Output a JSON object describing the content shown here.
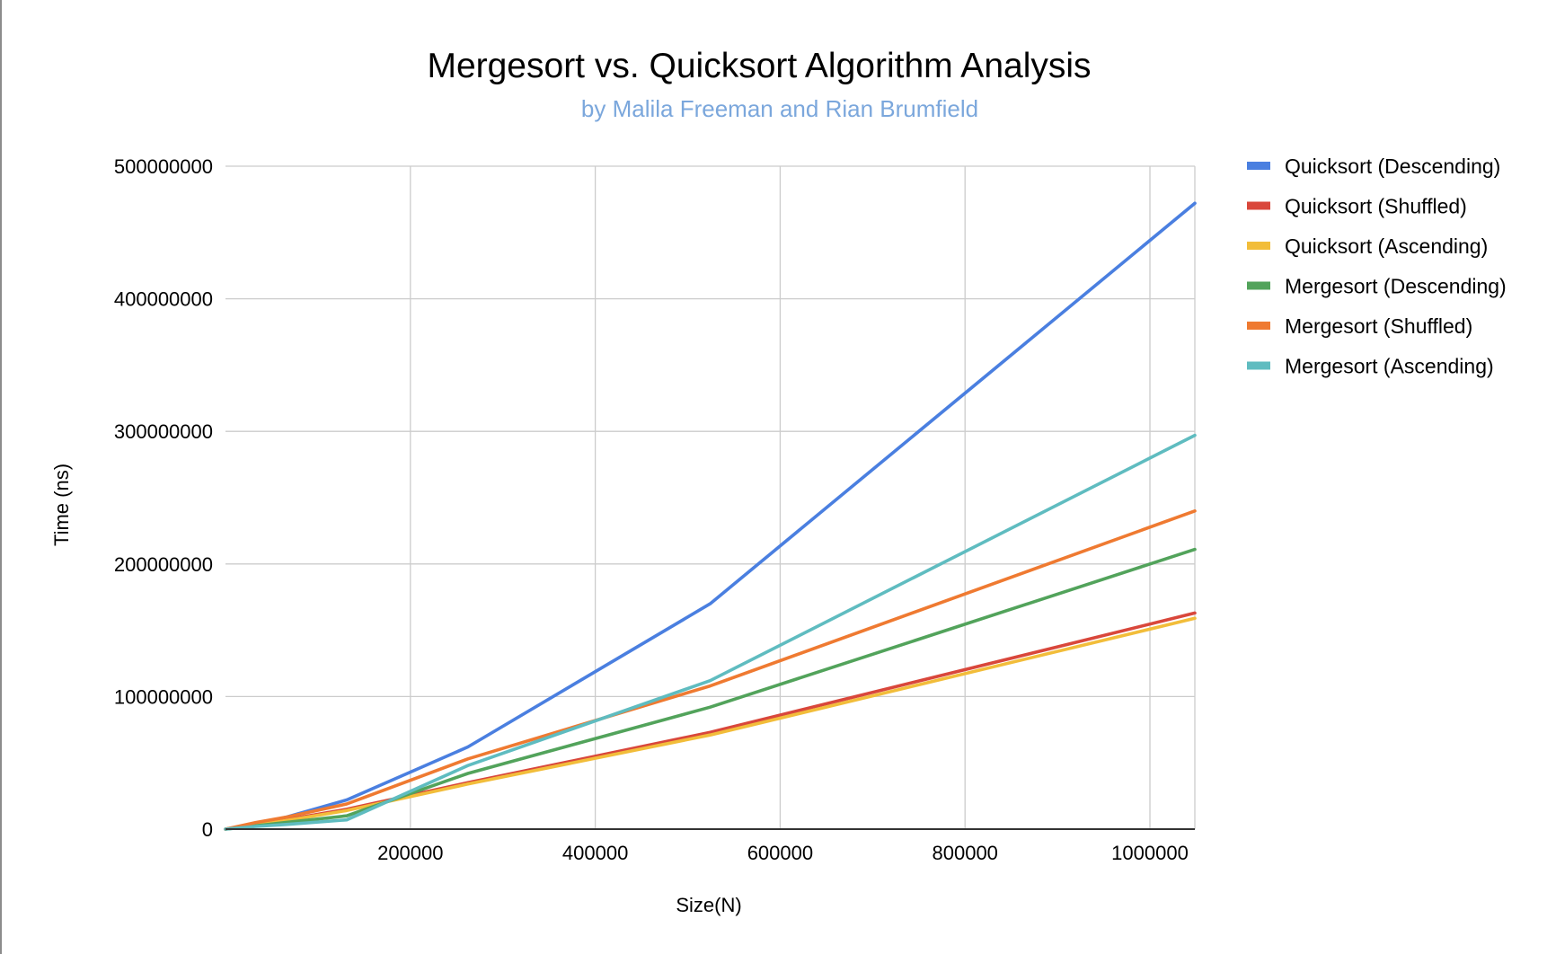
{
  "colors": {
    "background": "#ffffff",
    "grid": "#cccccc",
    "axis": "#333333",
    "subtitle": "#7ba7dc",
    "frame": "#8c8c8c"
  },
  "chart_data": {
    "type": "line",
    "title": "Mergesort vs. Quicksort Algorithm Analysis",
    "subtitle": "by Malila Freeman and Rian Brumfield",
    "xlabel": "Size(N)",
    "ylabel": "Time (ns)",
    "xlim": [
      0,
      1048576
    ],
    "ylim": [
      0,
      500000000
    ],
    "x_ticks": [
      200000,
      400000,
      600000,
      800000,
      1000000
    ],
    "x_tick_labels": [
      "200000",
      "400000",
      "600000",
      "800000",
      "1000000"
    ],
    "y_ticks": [
      0,
      100000000,
      200000000,
      300000000,
      400000000,
      500000000
    ],
    "y_tick_labels": [
      "0",
      "100000000",
      "200000000",
      "300000000",
      "400000000",
      "500000000"
    ],
    "grid": true,
    "legend_position": "right",
    "x": [
      0,
      32768,
      65536,
      131072,
      262144,
      524288,
      1048576
    ],
    "series": [
      {
        "name": "Quicksort (Descending)",
        "color": "#4a7fe0",
        "values": [
          0,
          4000000,
          9000000,
          22000000,
          62000000,
          170000000,
          472000000
        ]
      },
      {
        "name": "Quicksort (Shuffled)",
        "color": "#d9473b",
        "values": [
          0,
          3000000,
          7000000,
          15000000,
          35000000,
          73000000,
          163000000
        ]
      },
      {
        "name": "Quicksort (Ascending)",
        "color": "#f2bd3a",
        "values": [
          0,
          3000000,
          6500000,
          14000000,
          34000000,
          71000000,
          159000000
        ]
      },
      {
        "name": "Mergesort (Descending)",
        "color": "#52a35b",
        "values": [
          0,
          2500000,
          5000000,
          10000000,
          42000000,
          92000000,
          211000000
        ]
      },
      {
        "name": "Mergesort (Shuffled)",
        "color": "#ef7a31",
        "values": [
          0,
          5000000,
          9000000,
          19000000,
          53000000,
          108000000,
          240000000
        ]
      },
      {
        "name": "Mergesort (Ascending)",
        "color": "#5fbcc0",
        "values": [
          0,
          2000000,
          3500000,
          7000000,
          48000000,
          112000000,
          297000000
        ]
      }
    ]
  }
}
